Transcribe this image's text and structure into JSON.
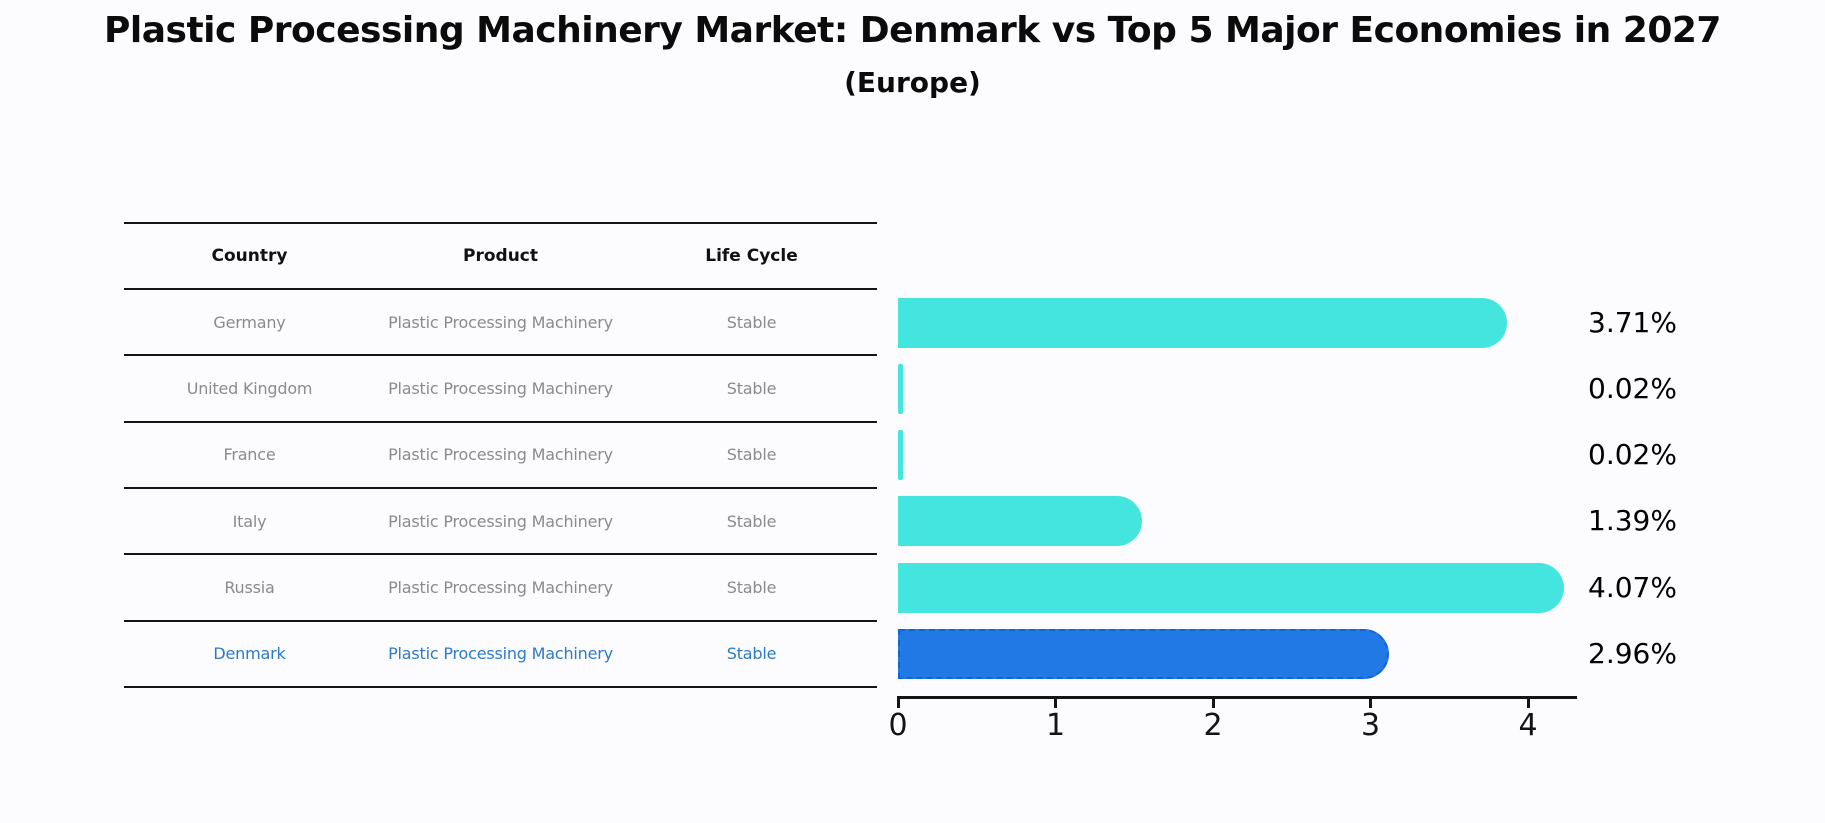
{
  "title": "Plastic Processing Machinery Market: Denmark vs Top 5 Major Economies in 2027",
  "subtitle": "(Europe)",
  "table": {
    "headers": [
      "Country",
      "Product",
      "Life Cycle"
    ],
    "rows": [
      {
        "country": "Germany",
        "product": "Plastic Processing Machinery",
        "life_cycle": "Stable",
        "highlight": false
      },
      {
        "country": "United Kingdom",
        "product": "Plastic Processing Machinery",
        "life_cycle": "Stable",
        "highlight": false
      },
      {
        "country": "France",
        "product": "Plastic Processing Machinery",
        "life_cycle": "Stable",
        "highlight": false
      },
      {
        "country": "Italy",
        "product": "Plastic Processing Machinery",
        "life_cycle": "Stable",
        "highlight": false
      },
      {
        "country": "Russia",
        "product": "Plastic Processing Machinery",
        "life_cycle": "Stable",
        "highlight": false
      },
      {
        "country": "Denmark",
        "product": "Plastic Processing Machinery",
        "life_cycle": "Stable",
        "highlight": true
      }
    ]
  },
  "chart_data": {
    "type": "bar",
    "orientation": "horizontal",
    "title": "Plastic Processing Machinery Market: Denmark vs Top 5 Major Economies in 2027",
    "subtitle": "(Europe)",
    "categories": [
      "Germany",
      "United Kingdom",
      "France",
      "Italy",
      "Russia",
      "Denmark"
    ],
    "values": [
      3.71,
      0.02,
      0.02,
      1.39,
      4.07,
      2.96
    ],
    "value_labels": [
      "3.71%",
      "0.02%",
      "0.02%",
      "1.39%",
      "4.07%",
      "2.96%"
    ],
    "highlight_index": 5,
    "x_ticks": [
      "0",
      "1",
      "2",
      "3",
      "4"
    ],
    "xlim": [
      0,
      4.3
    ],
    "grid": false,
    "legend": "none"
  },
  "colors": {
    "bar": "#45e5df",
    "highlight_bar": "#2179e6",
    "highlight_bar_border": "#1263d4",
    "table_text": "#8b8b8b",
    "highlight_text": "#2b7bca",
    "axis": "#141414",
    "background": "#fcfbfd"
  }
}
